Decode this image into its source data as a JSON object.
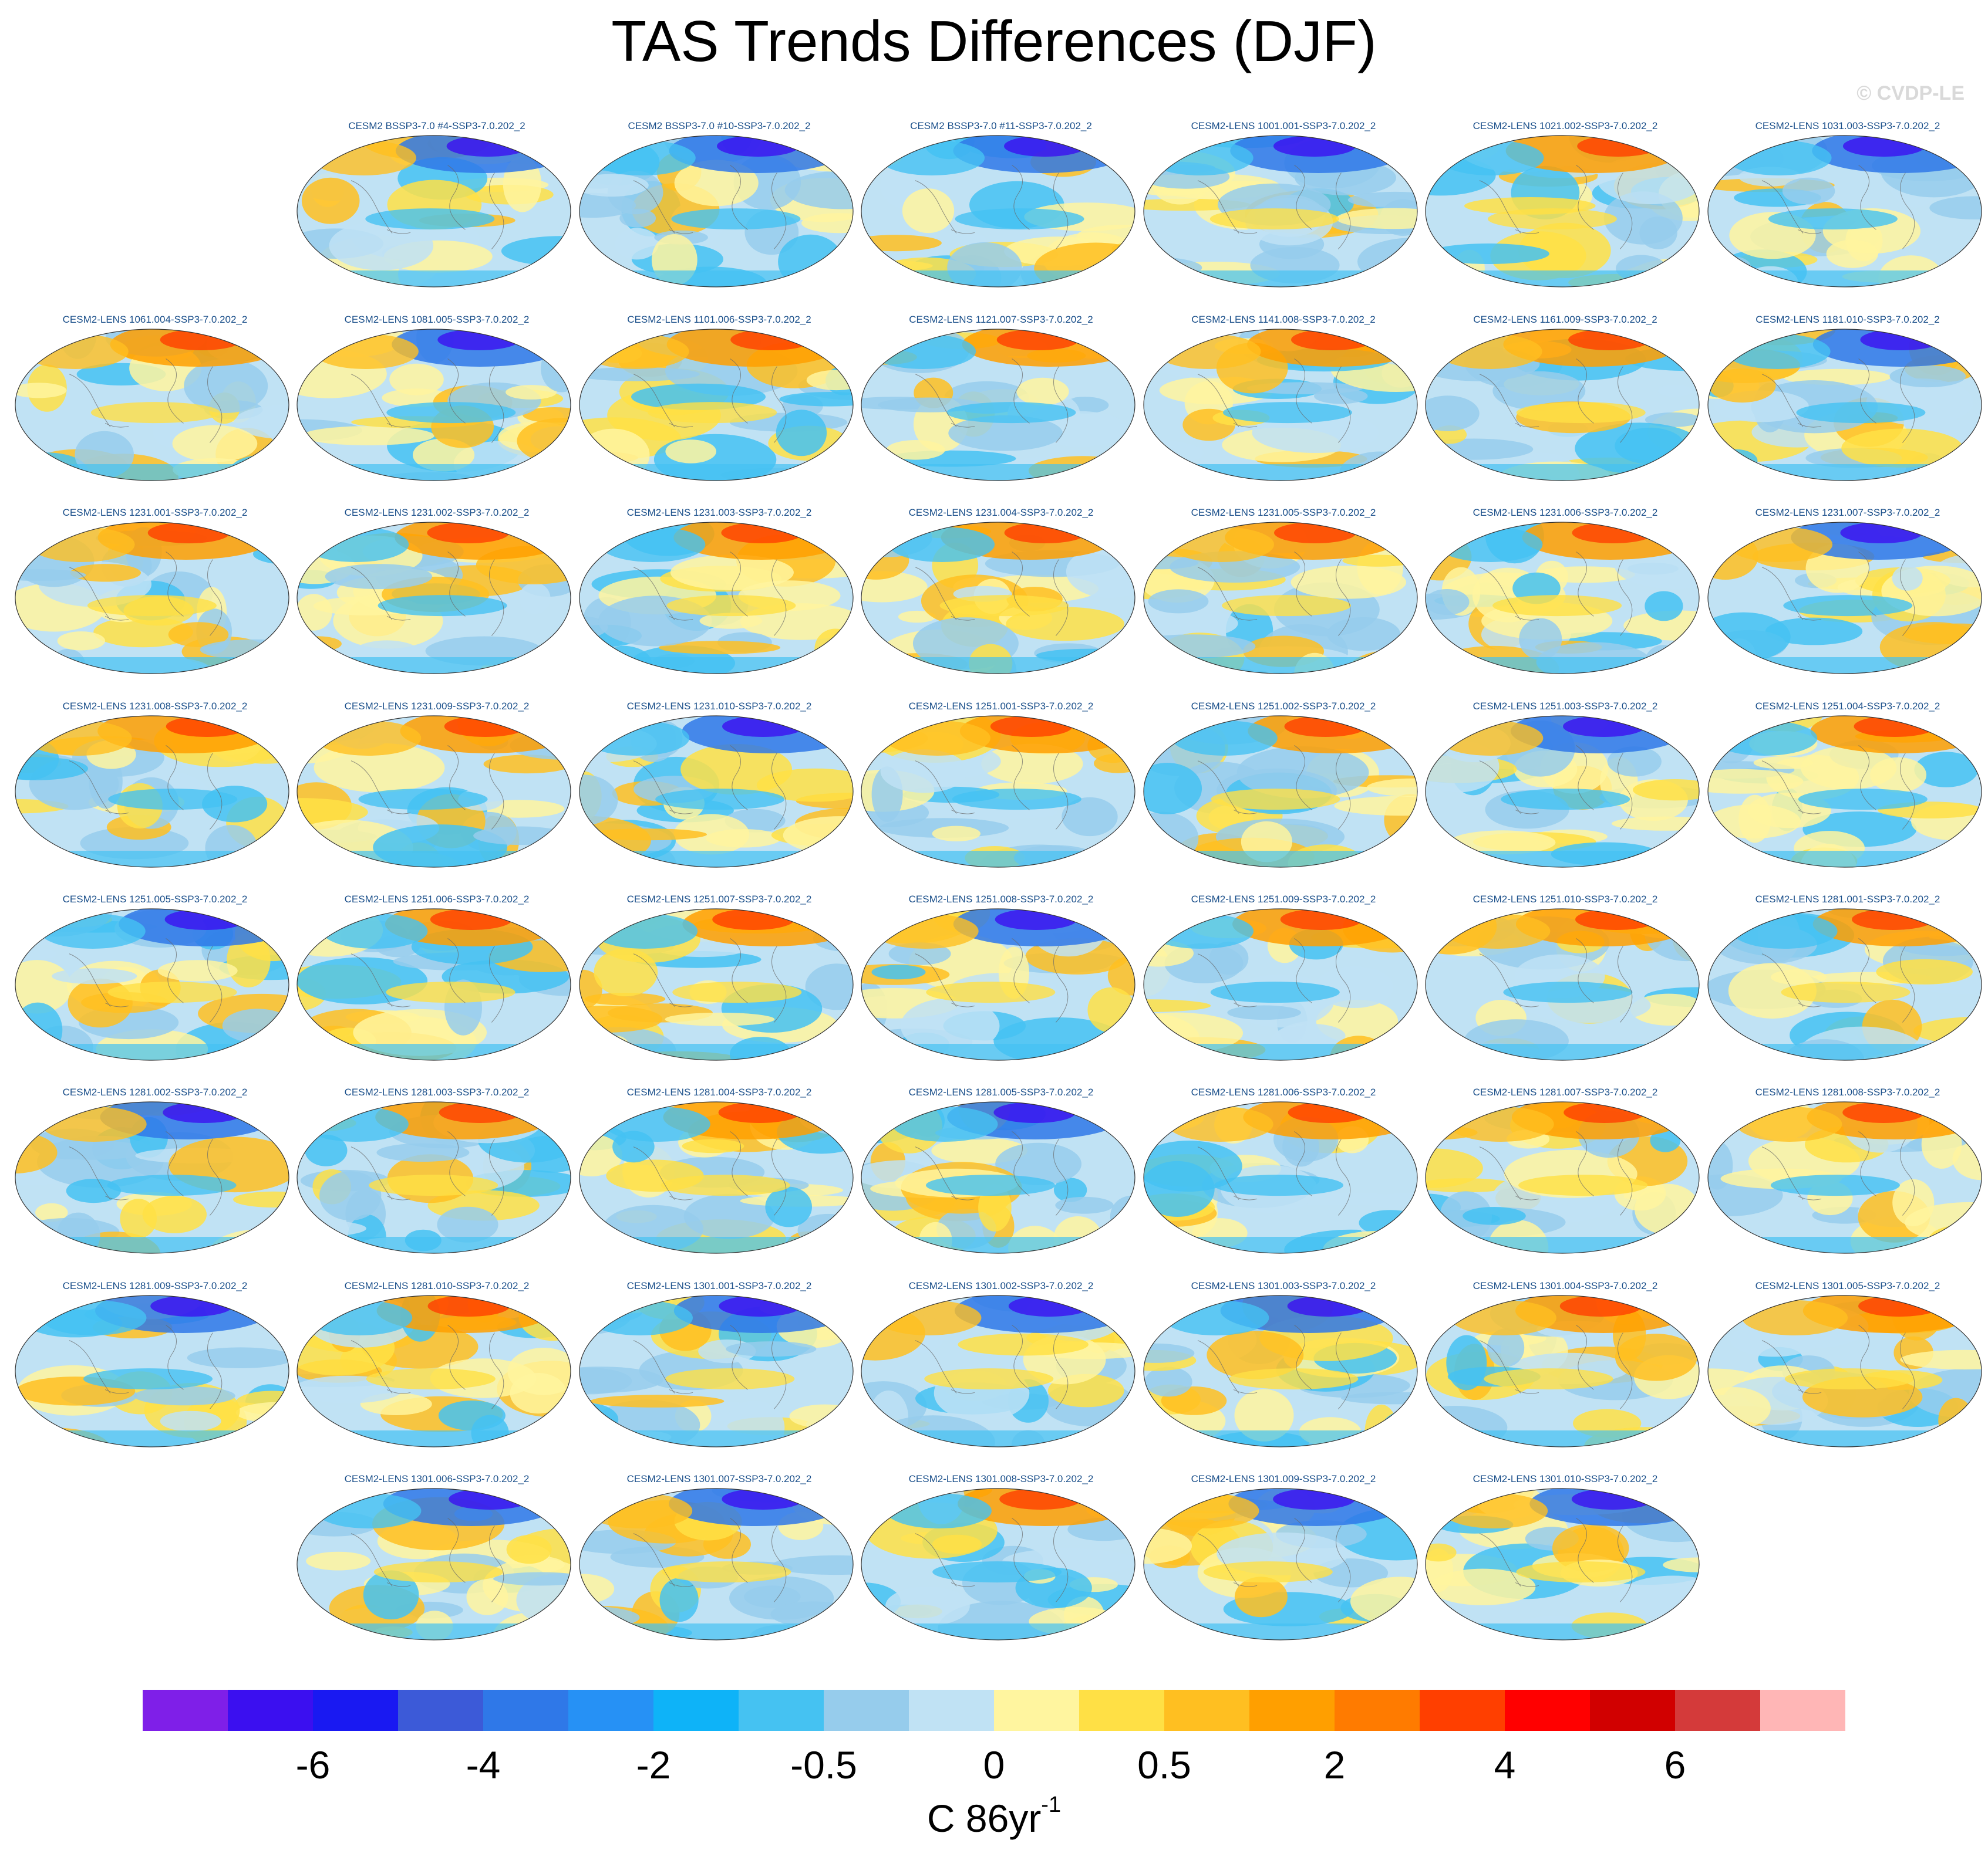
{
  "header": {
    "title": "TAS Trends Differences (DJF)",
    "watermark": "© CVDP-LE"
  },
  "panels": {
    "rows": [
      [
        "",
        "CESM2 BSSP3-7.0 #4-SSP3-7.0.202_2",
        "CESM2 BSSP3-7.0 #10-SSP3-7.0.202_2",
        "CESM2 BSSP3-7.0 #11-SSP3-7.0.202_2",
        "CESM2-LENS 1001.001-SSP3-7.0.202_2",
        "CESM2-LENS 1021.002-SSP3-7.0.202_2",
        "CESM2-LENS 1031.003-SSP3-7.0.202_2"
      ],
      [
        "CESM2-LENS 1061.004-SSP3-7.0.202_2",
        "CESM2-LENS 1081.005-SSP3-7.0.202_2",
        "CESM2-LENS 1101.006-SSP3-7.0.202_2",
        "CESM2-LENS 1121.007-SSP3-7.0.202_2",
        "CESM2-LENS 1141.008-SSP3-7.0.202_2",
        "CESM2-LENS 1161.009-SSP3-7.0.202_2",
        "CESM2-LENS 1181.010-SSP3-7.0.202_2"
      ],
      [
        "CESM2-LENS 1231.001-SSP3-7.0.202_2",
        "CESM2-LENS 1231.002-SSP3-7.0.202_2",
        "CESM2-LENS 1231.003-SSP3-7.0.202_2",
        "CESM2-LENS 1231.004-SSP3-7.0.202_2",
        "CESM2-LENS 1231.005-SSP3-7.0.202_2",
        "CESM2-LENS 1231.006-SSP3-7.0.202_2",
        "CESM2-LENS 1231.007-SSP3-7.0.202_2"
      ],
      [
        "CESM2-LENS 1231.008-SSP3-7.0.202_2",
        "CESM2-LENS 1231.009-SSP3-7.0.202_2",
        "CESM2-LENS 1231.010-SSP3-7.0.202_2",
        "CESM2-LENS 1251.001-SSP3-7.0.202_2",
        "CESM2-LENS 1251.002-SSP3-7.0.202_2",
        "CESM2-LENS 1251.003-SSP3-7.0.202_2",
        "CESM2-LENS 1251.004-SSP3-7.0.202_2"
      ],
      [
        "CESM2-LENS 1251.005-SSP3-7.0.202_2",
        "CESM2-LENS 1251.006-SSP3-7.0.202_2",
        "CESM2-LENS 1251.007-SSP3-7.0.202_2",
        "CESM2-LENS 1251.008-SSP3-7.0.202_2",
        "CESM2-LENS 1251.009-SSP3-7.0.202_2",
        "CESM2-LENS 1251.010-SSP3-7.0.202_2",
        "CESM2-LENS 1281.001-SSP3-7.0.202_2"
      ],
      [
        "CESM2-LENS 1281.002-SSP3-7.0.202_2",
        "CESM2-LENS 1281.003-SSP3-7.0.202_2",
        "CESM2-LENS 1281.004-SSP3-7.0.202_2",
        "CESM2-LENS 1281.005-SSP3-7.0.202_2",
        "CESM2-LENS 1281.006-SSP3-7.0.202_2",
        "CESM2-LENS 1281.007-SSP3-7.0.202_2",
        "CESM2-LENS 1281.008-SSP3-7.0.202_2"
      ],
      [
        "CESM2-LENS 1281.009-SSP3-7.0.202_2",
        "CESM2-LENS 1281.010-SSP3-7.0.202_2",
        "CESM2-LENS 1301.001-SSP3-7.0.202_2",
        "CESM2-LENS 1301.002-SSP3-7.0.202_2",
        "CESM2-LENS 1301.003-SSP3-7.0.202_2",
        "CESM2-LENS 1301.004-SSP3-7.0.202_2",
        "CESM2-LENS 1301.005-SSP3-7.0.202_2"
      ],
      [
        "",
        "CESM2-LENS 1301.006-SSP3-7.0.202_2",
        "CESM2-LENS 1301.007-SSP3-7.0.202_2",
        "CESM2-LENS 1301.008-SSP3-7.0.202_2",
        "CESM2-LENS 1301.009-SSP3-7.0.202_2",
        "CESM2-LENS 1301.010-SSP3-7.0.202_2",
        ""
      ]
    ]
  },
  "chart_data": {
    "type": "heatmap",
    "title": "TAS Trends Differences (DJF)",
    "projection": "global map panels",
    "colorbar": {
      "colors": [
        "#7f1fe8",
        "#3b0ff0",
        "#1919f2",
        "#3c5ad8",
        "#2f78e8",
        "#2691f5",
        "#0eb3f8",
        "#45c2f2",
        "#96ccec",
        "#c0e2f4",
        "#fff59f",
        "#ffe045",
        "#ffbf21",
        "#ff9f00",
        "#ff7b00",
        "#ff3f00",
        "#ff0000",
        "#d10000",
        "#d43a3a",
        "#ffb6b6"
      ],
      "tick_labels": [
        "-6",
        "-4",
        "-2",
        "-0.5",
        "0",
        "0.5",
        "2",
        "4",
        "6"
      ],
      "tick_boundaries": [
        2,
        4,
        6,
        8,
        10,
        12,
        14,
        16,
        18
      ],
      "units_main": "C 86yr",
      "units_sup": "-1"
    }
  }
}
